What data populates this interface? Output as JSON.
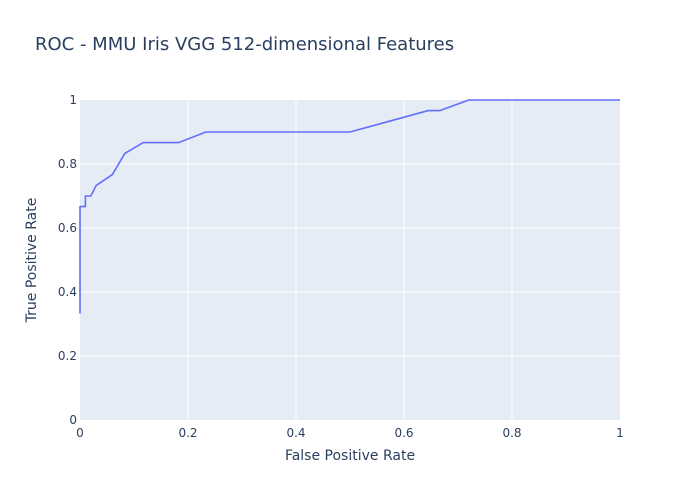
{
  "chart_data": {
    "type": "line",
    "title": "ROC - MMU Iris VGG 512-dimensional Features",
    "xlabel": "False Positive Rate",
    "ylabel": "True Positive Rate",
    "xlim": [
      0,
      1
    ],
    "ylim": [
      0,
      1
    ],
    "xticks": [
      "0",
      "0.2",
      "0.4",
      "0.6",
      "0.8",
      "1"
    ],
    "yticks": [
      "0",
      "0.2",
      "0.4",
      "0.6",
      "0.8",
      "1"
    ],
    "grid": true,
    "colors": {
      "plot_bg": "#e5ecf6",
      "grid": "#ffffff",
      "line": "#636efa",
      "text": "#2a3f5f"
    },
    "series": [
      {
        "x": [
          0,
          0,
          0.01,
          0.01,
          0.02,
          0.03,
          0.06,
          0.083,
          0.117,
          0.183,
          0.233,
          0.5,
          0.645,
          0.667,
          0.72,
          1.0
        ],
        "y": [
          0.333,
          0.667,
          0.667,
          0.7,
          0.7,
          0.733,
          0.767,
          0.833,
          0.867,
          0.867,
          0.9,
          0.9,
          0.967,
          0.967,
          1.0,
          1.0
        ]
      }
    ]
  }
}
